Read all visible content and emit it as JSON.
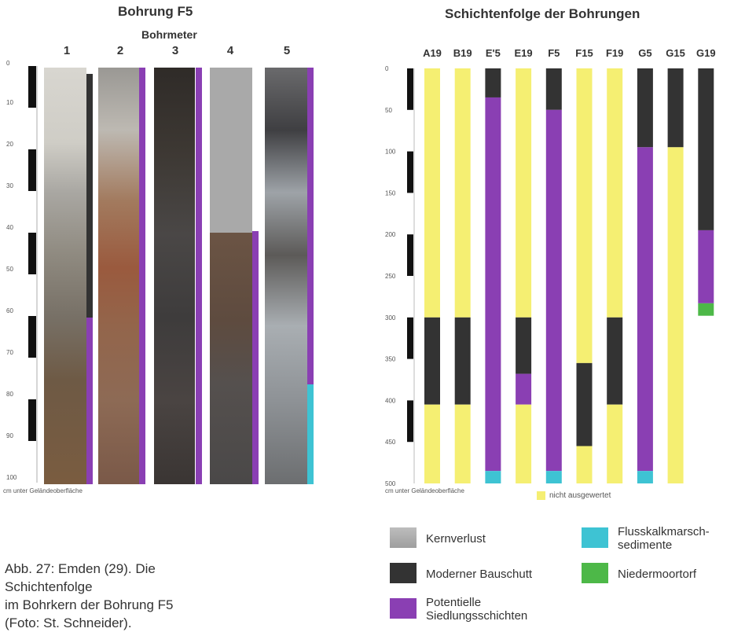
{
  "left": {
    "title": "Bohrung F5",
    "subtitle": "Bohrmeter",
    "columns": [
      "1",
      "2",
      "3",
      "4",
      "5"
    ],
    "ticks": [
      "0",
      "10",
      "20",
      "30",
      "40",
      "50",
      "60",
      "70",
      "80",
      "90",
      "100"
    ],
    "axis_note": "cm unter Geländeoberfläche"
  },
  "chart_data": {
    "type": "bar",
    "title": "Schichtenfolge der Bohrungen",
    "ylabel": "cm unter Geländeoberfläche",
    "ylim": [
      0,
      500
    ],
    "y_inverted": true,
    "y_ticks": [
      "0",
      "50",
      "100",
      "150",
      "200",
      "250",
      "300",
      "350",
      "400",
      "450",
      "500"
    ],
    "categories": [
      "A19",
      "B19",
      "E'5",
      "E19",
      "F5",
      "F15",
      "F19",
      "G5",
      "G15",
      "G19"
    ],
    "layer_colors": {
      "Kernverlust": "#a9a9a9",
      "Moderner Bauschutt": "#333333",
      "Potentielle Siedlungsschichten": "#8a3fb3",
      "Flusskalkmarschsedimente": "#3ec3d3",
      "Niedermoortorf": "#4db848",
      "nicht ausgewertet": "#f5ef72"
    },
    "borings": [
      {
        "name": "A19",
        "layers": [
          {
            "type": "nicht ausgewertet",
            "from": 0,
            "to": 300
          },
          {
            "type": "Moderner Bauschutt",
            "from": 300,
            "to": 405
          },
          {
            "type": "nicht ausgewertet",
            "from": 405,
            "to": 500
          }
        ]
      },
      {
        "name": "B19",
        "layers": [
          {
            "type": "nicht ausgewertet",
            "from": 0,
            "to": 300
          },
          {
            "type": "Moderner Bauschutt",
            "from": 300,
            "to": 405
          },
          {
            "type": "nicht ausgewertet",
            "from": 405,
            "to": 500
          }
        ]
      },
      {
        "name": "E'5",
        "layers": [
          {
            "type": "Moderner Bauschutt",
            "from": 0,
            "to": 35
          },
          {
            "type": "Potentielle Siedlungsschichten",
            "from": 35,
            "to": 485
          },
          {
            "type": "Flusskalkmarschsedimente",
            "from": 485,
            "to": 500
          }
        ]
      },
      {
        "name": "E19",
        "layers": [
          {
            "type": "nicht ausgewertet",
            "from": 0,
            "to": 300
          },
          {
            "type": "Moderner Bauschutt",
            "from": 300,
            "to": 368
          },
          {
            "type": "Potentielle Siedlungsschichten",
            "from": 368,
            "to": 405
          },
          {
            "type": "nicht ausgewertet",
            "from": 405,
            "to": 500
          }
        ]
      },
      {
        "name": "F5",
        "layers": [
          {
            "type": "Moderner Bauschutt",
            "from": 0,
            "to": 50
          },
          {
            "type": "Potentielle Siedlungsschichten",
            "from": 50,
            "to": 485
          },
          {
            "type": "Flusskalkmarschsedimente",
            "from": 485,
            "to": 500
          }
        ]
      },
      {
        "name": "F15",
        "layers": [
          {
            "type": "nicht ausgewertet",
            "from": 0,
            "to": 355
          },
          {
            "type": "Moderner Bauschutt",
            "from": 355,
            "to": 455
          },
          {
            "type": "nicht ausgewertet",
            "from": 455,
            "to": 500
          }
        ]
      },
      {
        "name": "F19",
        "layers": [
          {
            "type": "nicht ausgewertet",
            "from": 0,
            "to": 300
          },
          {
            "type": "Moderner Bauschutt",
            "from": 300,
            "to": 405
          },
          {
            "type": "nicht ausgewertet",
            "from": 405,
            "to": 500
          }
        ]
      },
      {
        "name": "G5",
        "layers": [
          {
            "type": "Moderner Bauschutt",
            "from": 0,
            "to": 95
          },
          {
            "type": "Potentielle Siedlungsschichten",
            "from": 95,
            "to": 485
          },
          {
            "type": "Flusskalkmarschsedimente",
            "from": 485,
            "to": 500
          }
        ]
      },
      {
        "name": "G15",
        "layers": [
          {
            "type": "Moderner Bauschutt",
            "from": 0,
            "to": 95
          },
          {
            "type": "nicht ausgewertet",
            "from": 95,
            "to": 500
          }
        ]
      },
      {
        "name": "G19",
        "layers": [
          {
            "type": "Moderner Bauschutt",
            "from": 0,
            "to": 195
          },
          {
            "type": "Potentielle Siedlungsschichten",
            "from": 195,
            "to": 283
          },
          {
            "type": "Niedermoortorf",
            "from": 283,
            "to": 298
          }
        ]
      }
    ],
    "legend_note": "nicht ausgewertet"
  },
  "legend": {
    "items": [
      {
        "label": "Kernverlust",
        "color": "#a9a9a9"
      },
      {
        "label": "Moderner Bauschutt",
        "color": "#333333"
      },
      {
        "label": "Potentielle Siedlungsschichten",
        "color": "#8a3fb3"
      },
      {
        "label": "Flusskalkmarsch-sedimente",
        "color": "#3ec3d3"
      },
      {
        "label": "Niedermoortorf",
        "color": "#4db848"
      }
    ],
    "item_lines": {
      "kernverlust": [
        "Kernverlust"
      ],
      "bauschutt": [
        "Moderner Bauschutt"
      ],
      "siedlung": [
        "Potentielle",
        "Siedlungsschichten"
      ],
      "fluss": [
        "Flusskalkmarsch-",
        "sedimente"
      ],
      "moor": [
        "Niedermoortorf"
      ]
    }
  },
  "caption": {
    "line1": "Abb. 27: Emden (29). Die Schichtenfolge",
    "line2": "im Bohrkern der Bohrung F5",
    "line3": "(Foto: St. Schneider)."
  }
}
